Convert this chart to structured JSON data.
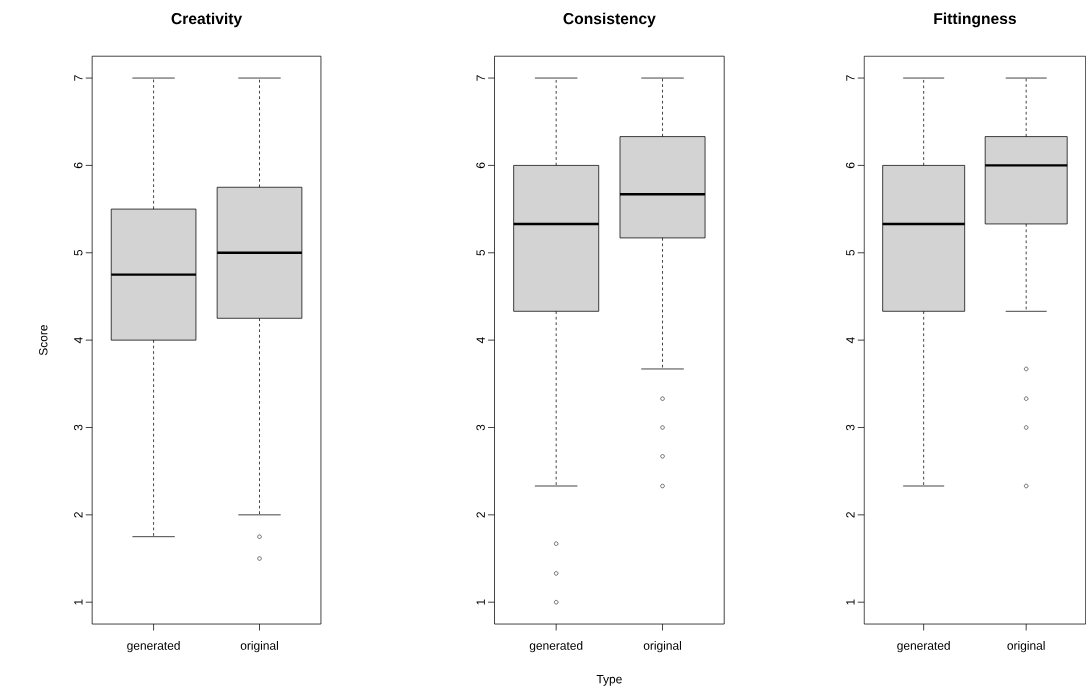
{
  "chart_data": [
    {
      "type": "box",
      "title": "Creativity",
      "ylabel": "Score",
      "categories": [
        "generated",
        "original"
      ],
      "color": "#d3d3d3",
      "ylim": [
        0.75,
        7.25
      ],
      "yticks": [
        1,
        2,
        3,
        4,
        5,
        6,
        7
      ],
      "boxes": [
        {
          "low": 1.75,
          "q1": 4,
          "median": 4.75,
          "q3": 5.5,
          "high": 7
        },
        {
          "low": 2,
          "q1": 4.25,
          "median": 5,
          "q3": 5.75,
          "high": 7,
          "outliers": [
            1.75,
            1.5
          ]
        }
      ]
    },
    {
      "type": "box",
      "title": "Consistency",
      "xlabel": "Type",
      "categories": [
        "generated",
        "original"
      ],
      "color": "#d3d3d3",
      "ylim": [
        0.75,
        7.25
      ],
      "yticks": [
        1,
        2,
        3,
        4,
        5,
        6,
        7
      ],
      "boxes": [
        {
          "low": 2.33,
          "q1": 4.33,
          "median": 5.33,
          "q3": 6,
          "high": 7,
          "outliers": [
            1.67,
            1.33,
            1
          ]
        },
        {
          "low": 3.67,
          "q1": 5.17,
          "median": 5.67,
          "q3": 6.33,
          "high": 7,
          "outliers": [
            3.33,
            3,
            2.67,
            2.33
          ]
        }
      ]
    },
    {
      "type": "box",
      "title": "Fittingness",
      "categories": [
        "generated",
        "original"
      ],
      "color": "#d3d3d3",
      "ylim": [
        0.75,
        7.25
      ],
      "yticks": [
        1,
        2,
        3,
        4,
        5,
        6,
        7
      ],
      "boxes": [
        {
          "low": 2.33,
          "q1": 4.33,
          "median": 5.33,
          "q3": 6,
          "high": 7
        },
        {
          "low": 4.33,
          "q1": 5.33,
          "median": 6,
          "q3": 6.33,
          "high": 7,
          "outliers": [
            3.67,
            3.33,
            3,
            2.33
          ]
        }
      ]
    }
  ]
}
